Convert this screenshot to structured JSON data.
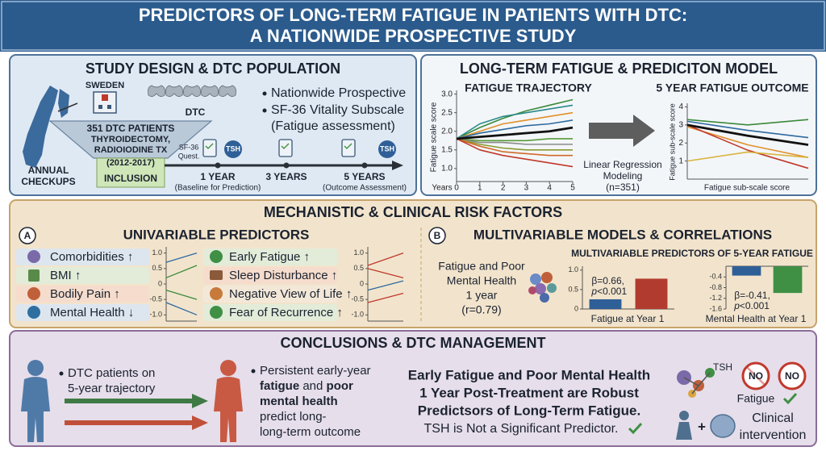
{
  "header": {
    "title_line1": "PREDICTORS OF LONG-TERM FATIGUE IN PATIENTS WITH DTC:",
    "title_line2": "A NATIONWIDE PROSPECTIVE STUDY"
  },
  "study_design": {
    "title": "STUDY DESIGN & DTC POPULATION",
    "country": "SWEDEN",
    "dtc": "DTC",
    "funnel_lines": [
      "351 DTC PATIENTS",
      "THYROIDECTOMY,",
      "RADIOIODINE TX",
      "(2012-2017)"
    ],
    "inclusion": "INCLUSION",
    "annual_checkups": [
      "ANNUAL",
      "CHECKUPS"
    ],
    "bullets": [
      "Nationwide Prospective",
      "SF-36 Vitality Subscale"
    ],
    "bullet_continuation": "(Fatigue assessment)",
    "questionnaire": [
      "SF-36",
      "Quest."
    ],
    "tsh": "TSH",
    "timeline": [
      {
        "label": "1 YEAR",
        "sub": "(Baseline for Prediction)"
      },
      {
        "label": "3 YEARS"
      },
      {
        "label": "5 YEARS",
        "sub": "(Outcome Assessment)"
      }
    ]
  },
  "model": {
    "title": "LONG-TERM FATIGUE & PREDICITON MODEL",
    "trajectory": {
      "type": "line",
      "title": "FATIGUE TRAJECTORY",
      "y_label": "Fatigue scale score",
      "x_label": "Years",
      "x": [
        0,
        1,
        2,
        3,
        4,
        5
      ],
      "xlim": [
        0,
        5
      ],
      "xticks": [
        0,
        1,
        2,
        3,
        4,
        5
      ],
      "ylim": [
        0.65,
        3.1
      ],
      "yticks": [
        {
          "value": 1,
          "label": "1.0"
        },
        1.5,
        {
          "value": 2,
          "label": "2.0"
        },
        2.5,
        {
          "value": 3,
          "label": "3.0"
        }
      ],
      "series": [
        {
          "color": "#3a8a3a",
          "values": [
            1.8,
            2.1,
            2.35,
            2.55,
            2.7,
            2.85
          ]
        },
        {
          "color": "#2a8a8a",
          "values": [
            1.8,
            2.2,
            2.4,
            2.5,
            2.6,
            2.7
          ]
        },
        {
          "color": "#e0902a",
          "values": [
            1.8,
            2.0,
            2.2,
            2.3,
            2.4,
            2.5
          ]
        },
        {
          "color": "#2d6aa0",
          "values": [
            1.8,
            1.95,
            2.05,
            2.15,
            2.2,
            2.3
          ]
        },
        {
          "color": "#5a9a3a",
          "values": [
            1.8,
            1.75,
            1.75,
            1.75,
            1.8,
            1.8
          ]
        },
        {
          "color": "#8a8a8a",
          "values": [
            1.8,
            1.7,
            1.7,
            1.65,
            1.65,
            1.65
          ]
        },
        {
          "color": "#8a9a30",
          "values": [
            1.8,
            1.65,
            1.55,
            1.5,
            1.5,
            1.5
          ]
        },
        {
          "color": "#d06a2a",
          "values": [
            1.8,
            1.6,
            1.45,
            1.4,
            1.35,
            1.35
          ]
        },
        {
          "color": "#c0392b",
          "values": [
            1.8,
            1.5,
            1.35,
            1.25,
            1.15,
            1.05
          ]
        },
        {
          "color": "#111111",
          "values": [
            1.8,
            1.85,
            1.9,
            1.95,
            2.0,
            2.1
          ]
        }
      ]
    },
    "regression": [
      "Linear Regression",
      "Modeling",
      "(n=351)"
    ],
    "outcome": {
      "type": "line",
      "title": "5 YEAR FATIGUE OUTCOME",
      "y_label": "Fatigue sub-scale score",
      "x_label": "Fatigue sub-scale score",
      "categories": [
        null,
        null,
        null
      ],
      "ylim": [
        0,
        4.2
      ],
      "yticks": [
        1,
        2,
        3,
        4
      ],
      "series": [
        {
          "color": "#3a8a3a",
          "values": [
            3.3,
            3.0,
            3.3
          ]
        },
        {
          "color": "#2d6aa0",
          "values": [
            3.2,
            2.7,
            2.3
          ]
        },
        {
          "color": "#e0902a",
          "values": [
            2.9,
            1.9,
            1.2
          ]
        },
        {
          "color": "#c0392b",
          "values": [
            3.0,
            1.6,
            0.6
          ]
        },
        {
          "color": "#d9b440",
          "values": [
            1.0,
            1.5,
            1.2
          ]
        },
        {
          "color": "#111111",
          "values": [
            3.0,
            2.4,
            1.9
          ]
        }
      ]
    }
  },
  "risk_factors": {
    "title": "MECHANISTIC & CLINICAL RISK FACTORS",
    "univariable": {
      "letter": "A",
      "title": "UNIVARIABLE PREDICTORS",
      "left": [
        "Comorbidities ↑",
        "BMI ↑",
        "Bodily Pain ↑",
        "Mental Health ↓"
      ],
      "right": [
        "Early Fatigue ↑",
        "Sleep Disturbance ↑",
        "Negative View of Life ↑",
        "Fear of Recurrence ↑"
      ],
      "trend_charts": [
        {
          "type": "line",
          "categories": [
            null,
            null
          ],
          "ylim": [
            -1.2,
            1.2
          ],
          "yticks": [
            {
              "value": 1,
              "label": "1.0"
            },
            0.5,
            0,
            -0.5,
            {
              "value": -1,
              "label": "-1.0"
            }
          ],
          "series": [
            {
              "color": "#2d6aa0",
              "values": [
                0.7,
                1.0
              ]
            },
            {
              "color": "#3a8a3a",
              "values": [
                0.2,
                0.6
              ]
            },
            {
              "color": "#3a8a3a",
              "values": [
                -0.2,
                -0.5
              ]
            },
            {
              "color": "#2d6aa0",
              "values": [
                -0.6,
                -1.0
              ]
            }
          ]
        },
        {
          "type": "line",
          "categories": [
            null,
            null
          ],
          "ylim": [
            -1.2,
            1.2
          ],
          "yticks": [
            {
              "value": 1,
              "label": "1.0"
            },
            0.5,
            0,
            -0.5,
            {
              "value": -1,
              "label": "-1.0"
            }
          ],
          "series": [
            {
              "color": "#c0392b",
              "values": [
                0.6,
                1.0
              ]
            },
            {
              "color": "#c0392b",
              "values": [
                0.5,
                0.2
              ]
            },
            {
              "color": "#2d6aa0",
              "values": [
                -0.2,
                0.1
              ]
            },
            {
              "color": "#c0392b",
              "values": [
                -0.6,
                -0.3
              ]
            }
          ]
        }
      ]
    },
    "multivariable": {
      "letter": "B",
      "title": "MULTIVARIABLE MODELS & CORRELATIONS",
      "correlation": [
        "Fatigue and Poor",
        "Mental Health",
        "1 year",
        "(r=0.79)"
      ],
      "subtitle": "MULTIVARIABLE PREDICTORS OF 5-YEAR FATIGUE",
      "charts": [
        {
          "type": "bar",
          "x_label": "Fatigue at Year 1",
          "beta": "β=0.66,",
          "p": "p",
          "p_value": "<0.001",
          "values": [
            0.25,
            0.78
          ],
          "colors": [
            "#2f5f97",
            "#b23b2f"
          ],
          "ylim": [
            0,
            1.1
          ],
          "yticks": [
            0,
            0.5,
            {
              "value": 1,
              "label": "1.0"
            }
          ]
        },
        {
          "type": "bar",
          "x_label": "Mental Health at Year 1",
          "beta": "β=-0.41,",
          "p": "p",
          "p_value": "<0.001",
          "values": [
            -0.35,
            -1.0
          ],
          "colors": [
            "#2f5f97",
            "#3f8f45"
          ],
          "ylim": [
            -1.6,
            0
          ],
          "yticks": [
            -0.4,
            -0.8,
            -1.2,
            -1.6
          ]
        }
      ]
    }
  },
  "conclusions": {
    "title": "CONCLUSIONS & DTC MANAGEMENT",
    "trajectory_note": [
      "DTC patients on",
      "5-year trajectory"
    ],
    "persistent": {
      "line1": "Persistent early-year",
      "line2_bold1": "fatigue",
      "line2_mid": "and",
      "line2_bold2": "poor",
      "line3_bold": "mental health",
      "line4": "predict long-",
      "line5": "long-term outcome"
    },
    "key_finding": [
      "Early Fatigue and Poor Mental Health",
      "1 Year Post-Treatment are Robust",
      "Predictsors of Long-Term Fatigue."
    ],
    "tsh_note": "TSH is Not a Significant Predictor.",
    "tsh": "TSH",
    "no": [
      "NO",
      "NO"
    ],
    "fatigue": "Fatigue",
    "plus": "+",
    "clinical": [
      "Clinical",
      "intervention"
    ]
  }
}
